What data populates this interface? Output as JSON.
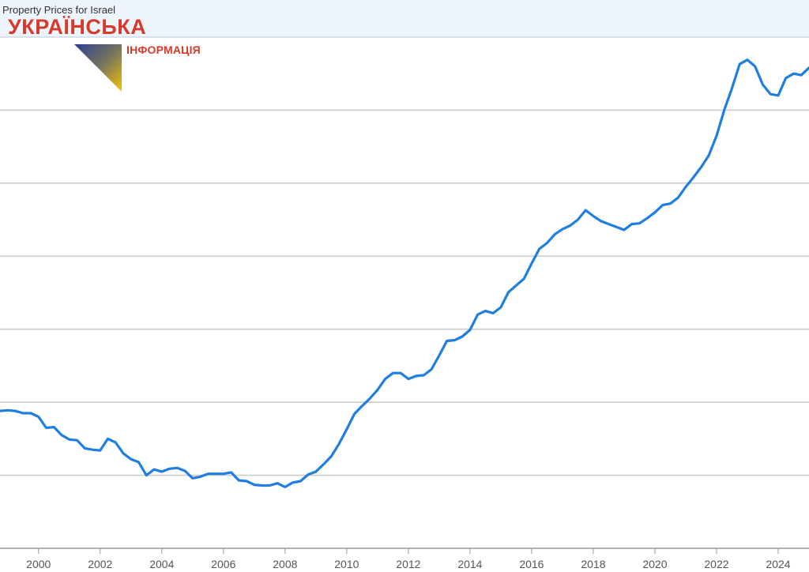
{
  "title": "Property Prices for Israel",
  "watermark": {
    "name": "УКРАЇНСЬКА",
    "subtitle": "ІНФОРМАЦІЯ"
  },
  "colors": {
    "line": "#1f7ee0",
    "grid": "#cccccc",
    "header_band": "#eef4fb",
    "watermark": "#d63a2a",
    "flag_blue": "#2a3d8f",
    "flag_yellow": "#f5c400"
  },
  "chart_data": {
    "type": "line",
    "title": "Property Prices for Israel",
    "xlabel": "",
    "ylabel": "",
    "x_ticks": [
      "2000",
      "2002",
      "2004",
      "2006",
      "2008",
      "2010",
      "2012",
      "2014",
      "2016",
      "2018",
      "2020",
      "2022",
      "2024"
    ],
    "y_ticks_visible": false,
    "gridlines": "horizontal",
    "xlim": [
      1998.75,
      2025.0
    ],
    "ylim": [
      0,
      7
    ],
    "series": [
      {
        "name": "",
        "x": [
          1998.75,
          1999.0,
          1999.25,
          1999.5,
          1999.75,
          2000.0,
          2000.25,
          2000.5,
          2000.75,
          2001.0,
          2001.25,
          2001.5,
          2001.75,
          2002.0,
          2002.25,
          2002.5,
          2002.75,
          2003.0,
          2003.25,
          2003.5,
          2003.75,
          2004.0,
          2004.25,
          2004.5,
          2004.75,
          2005.0,
          2005.25,
          2005.5,
          2005.75,
          2006.0,
          2006.25,
          2006.5,
          2006.75,
          2007.0,
          2007.25,
          2007.5,
          2007.75,
          2008.0,
          2008.25,
          2008.5,
          2008.75,
          2009.0,
          2009.25,
          2009.5,
          2009.75,
          2010.0,
          2010.25,
          2010.5,
          2010.75,
          2011.0,
          2011.25,
          2011.5,
          2011.75,
          2012.0,
          2012.25,
          2012.5,
          2012.75,
          2013.0,
          2013.25,
          2013.5,
          2013.75,
          2014.0,
          2014.25,
          2014.5,
          2014.75,
          2015.0,
          2015.25,
          2015.5,
          2015.75,
          2016.0,
          2016.25,
          2016.5,
          2016.75,
          2017.0,
          2017.25,
          2017.5,
          2017.75,
          2018.0,
          2018.25,
          2018.5,
          2018.75,
          2019.0,
          2019.25,
          2019.5,
          2019.75,
          2020.0,
          2020.25,
          2020.5,
          2020.75,
          2021.0,
          2021.25,
          2021.5,
          2021.75,
          2022.0,
          2022.25,
          2022.5,
          2022.75,
          2023.0,
          2023.25,
          2023.5,
          2023.75,
          2024.0,
          2024.25,
          2024.5,
          2024.75,
          2025.0
        ],
        "y": [
          1.88,
          1.89,
          1.88,
          1.85,
          1.85,
          1.8,
          1.65,
          1.66,
          1.55,
          1.49,
          1.48,
          1.37,
          1.35,
          1.34,
          1.5,
          1.45,
          1.3,
          1.22,
          1.18,
          1.0,
          1.08,
          1.05,
          1.09,
          1.1,
          1.06,
          0.96,
          0.98,
          1.02,
          1.02,
          1.02,
          1.04,
          0.93,
          0.92,
          0.87,
          0.86,
          0.86,
          0.89,
          0.84,
          0.9,
          0.92,
          1.01,
          1.05,
          1.15,
          1.26,
          1.43,
          1.63,
          1.84,
          1.95,
          2.05,
          2.17,
          2.32,
          2.4,
          2.4,
          2.32,
          2.36,
          2.37,
          2.45,
          2.64,
          2.84,
          2.85,
          2.9,
          2.99,
          3.2,
          3.25,
          3.22,
          3.3,
          3.51,
          3.6,
          3.69,
          3.9,
          4.1,
          4.18,
          4.3,
          4.37,
          4.42,
          4.5,
          4.63,
          4.55,
          4.48,
          4.44,
          4.4,
          4.36,
          4.44,
          4.45,
          4.52,
          4.6,
          4.7,
          4.72,
          4.8,
          4.95,
          5.08,
          5.22,
          5.38,
          5.65,
          6.0,
          6.3,
          6.63,
          6.69,
          6.6,
          6.35,
          6.22,
          6.2,
          6.44,
          6.5,
          6.48,
          6.58
        ]
      }
    ]
  }
}
